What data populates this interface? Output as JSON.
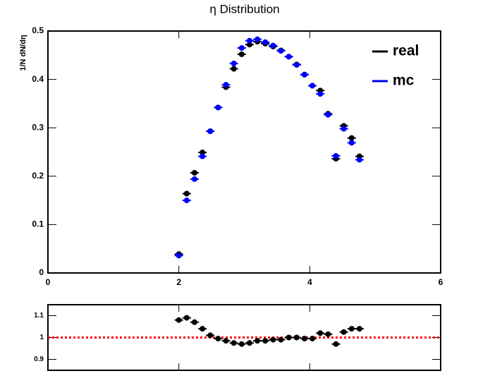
{
  "chart_data": [
    {
      "type": "scatter",
      "title": "η Distribution",
      "y_label": "1/N dN/dη",
      "x": [
        2.0,
        2.12,
        2.24,
        2.36,
        2.48,
        2.6,
        2.72,
        2.84,
        2.96,
        3.08,
        3.2,
        3.32,
        3.44,
        3.56,
        3.68,
        3.8,
        3.92,
        4.04,
        4.16,
        4.28,
        4.4,
        4.52,
        4.64,
        4.76
      ],
      "series": [
        {
          "name": "real",
          "color": "#000000",
          "values": [
            0.039,
            0.164,
            0.207,
            0.249,
            0.293,
            0.342,
            0.384,
            0.422,
            0.452,
            0.472,
            0.478,
            0.474,
            0.468,
            0.46,
            0.447,
            0.431,
            0.41,
            0.387,
            0.377,
            0.329,
            0.236,
            0.304,
            0.279,
            0.241
          ]
        },
        {
          "name": "mc",
          "color": "#0000ff",
          "values": [
            0.036,
            0.15,
            0.194,
            0.241,
            0.293,
            0.342,
            0.389,
            0.433,
            0.465,
            0.48,
            0.483,
            0.477,
            0.47,
            0.459,
            0.447,
            0.43,
            0.41,
            0.387,
            0.37,
            0.327,
            0.242,
            0.298,
            0.269,
            0.234
          ]
        }
      ],
      "xlim": [
        0,
        6
      ],
      "ylim": [
        0,
        0.5
      ],
      "xticks": [
        0,
        2,
        4,
        6
      ],
      "yticks": [
        0,
        0.1,
        0.2,
        0.3,
        0.4,
        0.5
      ],
      "legend": "upper right"
    },
    {
      "type": "scatter",
      "x": [
        2.0,
        2.12,
        2.24,
        2.36,
        2.48,
        2.6,
        2.72,
        2.84,
        2.96,
        3.08,
        3.2,
        3.32,
        3.44,
        3.56,
        3.68,
        3.8,
        3.92,
        4.04,
        4.16,
        4.28,
        4.4,
        4.52,
        4.64,
        4.76
      ],
      "values": [
        1.08,
        1.09,
        1.07,
        1.04,
        1.01,
        0.995,
        0.985,
        0.975,
        0.97,
        0.975,
        0.985,
        0.985,
        0.99,
        0.99,
        1.0,
        1.0,
        0.995,
        0.995,
        1.02,
        1.015,
        0.97,
        1.025,
        1.04,
        1.04
      ],
      "color": "#000000",
      "reference_line": {
        "value": 1,
        "color": "#ff0000"
      },
      "xlim": [
        0,
        6
      ],
      "ylim": [
        0.85,
        1.15
      ],
      "xticks": [
        0,
        2,
        4,
        6
      ],
      "yticks": [
        0.9,
        1,
        1.1
      ]
    }
  ]
}
